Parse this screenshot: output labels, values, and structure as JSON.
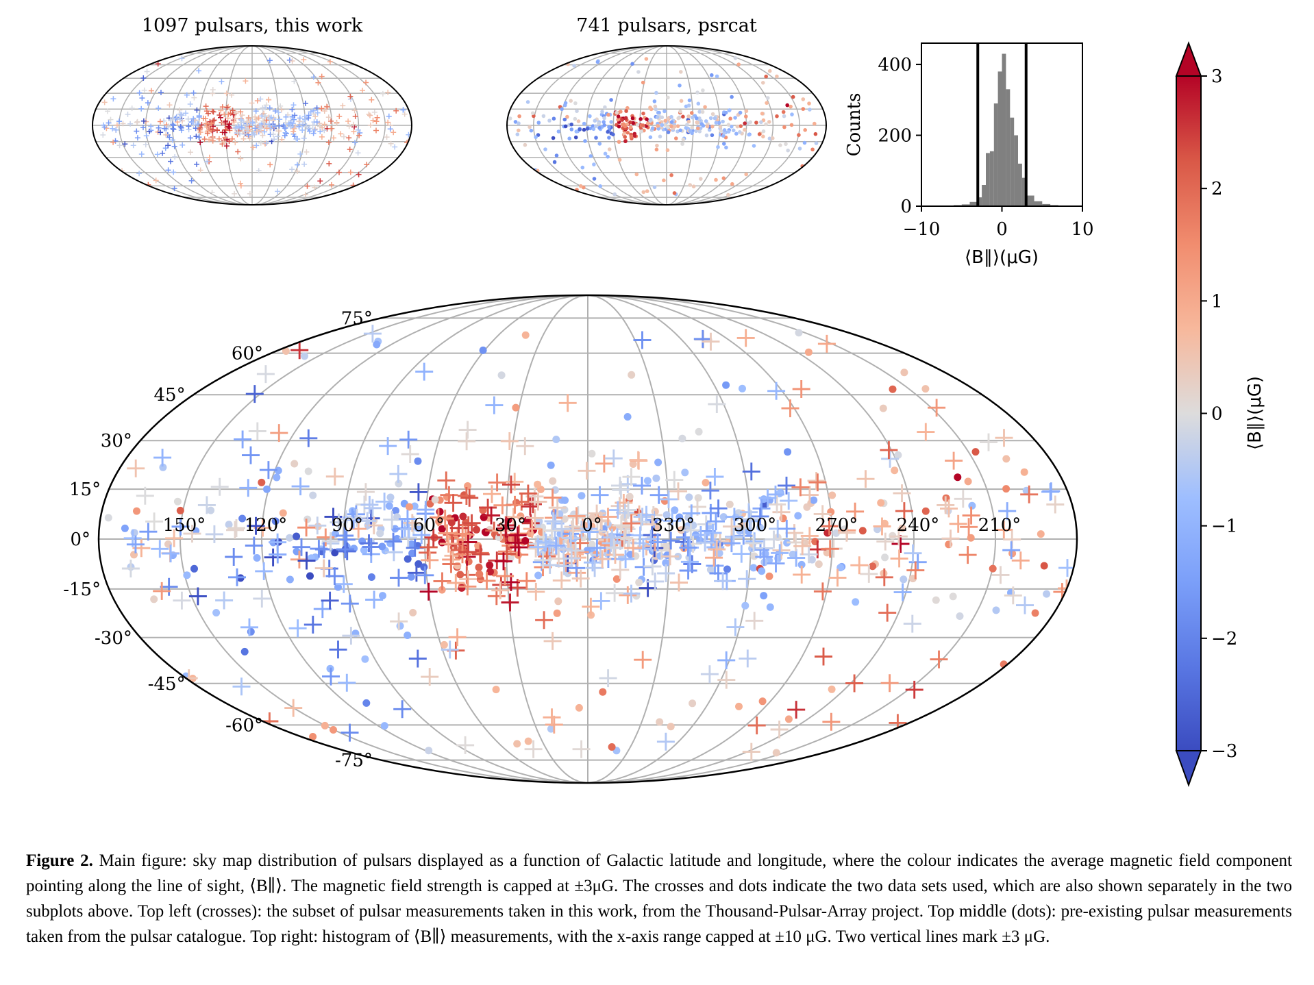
{
  "subplots": {
    "left_title": "1097 pulsars, this work",
    "middle_title": "741 pulsars, psrcat"
  },
  "histogram": {
    "ylabel": "Counts",
    "xlabel": "⟨B∥⟩(μG)",
    "y_ticks": [
      "0",
      "200",
      "400"
    ],
    "x_ticks": [
      "−10",
      "0",
      "10"
    ]
  },
  "colorbar": {
    "label": "⟨B∥⟩(μG)",
    "ticks": [
      "3",
      "2",
      "1",
      "0",
      "−1",
      "−2",
      "−3"
    ]
  },
  "main_map": {
    "lat_labels": [
      "75°",
      "60°",
      "45°",
      "30°",
      "15°",
      "0°",
      "-15°",
      "-30°",
      "-45°",
      "-60°",
      "-75°"
    ],
    "lon_labels": [
      "150°",
      "120°",
      "90°",
      "60°",
      "30°",
      "0°",
      "330°",
      "300°",
      "270°",
      "240°",
      "210°"
    ]
  },
  "caption": {
    "label": "Figure 2.",
    "text": "Main figure: sky map distribution of pulsars displayed as a function of Galactic latitude and longitude, where the colour indicates the average magnetic field component pointing along the line of sight, ⟨B∥⟩. The magnetic field strength is capped at ±3μG. The crosses and dots indicate the two data sets used, which are also shown separately in the two subplots above. Top left (crosses): the subset of pulsar measurements taken in this work, from the Thousand-Pulsar-Array project. Top middle (dots): pre-existing pulsar measurements taken from the pulsar catalogue. Top right: histogram of ⟨B∥⟩ measurements, with the x-axis range capped at ±10 μG. Two vertical lines mark ±3 μG."
  },
  "chart_data": [
    {
      "type": "scatter",
      "title": "1097 pulsars, this work",
      "projection": "mollweide",
      "marker": "cross",
      "lon_range": [
        -180,
        180
      ],
      "lat_range": [
        -90,
        90
      ],
      "color_range": [
        -3,
        3
      ],
      "colormap": "coolwarm",
      "grid": true
    },
    {
      "type": "scatter",
      "title": "741 pulsars, psrcat",
      "projection": "mollweide",
      "marker": "dot",
      "lon_range": [
        -180,
        180
      ],
      "lat_range": [
        -90,
        90
      ],
      "color_range": [
        -3,
        3
      ],
      "colormap": "coolwarm",
      "grid": true
    },
    {
      "type": "bar",
      "subtype": "histogram",
      "xlabel": "⟨B∥⟩(μG)",
      "ylabel": "Counts",
      "xlim": [
        -10,
        10
      ],
      "ylim": [
        0,
        460
      ],
      "bin_edges": [
        -10,
        -9,
        -8,
        -7,
        -6,
        -5,
        -4,
        -3,
        -2.5,
        -2,
        -1.5,
        -1,
        -0.5,
        0,
        0.5,
        1,
        1.5,
        2,
        2.5,
        3,
        4,
        5,
        6,
        7,
        8,
        9,
        10
      ],
      "values": [
        1,
        1,
        1,
        2,
        3,
        5,
        12,
        25,
        60,
        150,
        155,
        290,
        380,
        430,
        330,
        250,
        200,
        120,
        80,
        30,
        14,
        6,
        3,
        2,
        1,
        1
      ],
      "vlines": [
        -3,
        3
      ]
    },
    {
      "type": "scatter",
      "projection": "mollweide",
      "markers": [
        "cross",
        "dot"
      ],
      "lon_ticks": [
        150,
        120,
        90,
        60,
        30,
        0,
        330,
        300,
        270,
        240,
        210
      ],
      "lat_ticks": [
        75,
        60,
        45,
        30,
        15,
        0,
        -15,
        -30,
        -45,
        -60,
        -75
      ],
      "color_range": [
        -3,
        3
      ],
      "colormap": "coolwarm",
      "colorbar_label": "⟨B∥⟩(μG)",
      "grid": true
    }
  ]
}
